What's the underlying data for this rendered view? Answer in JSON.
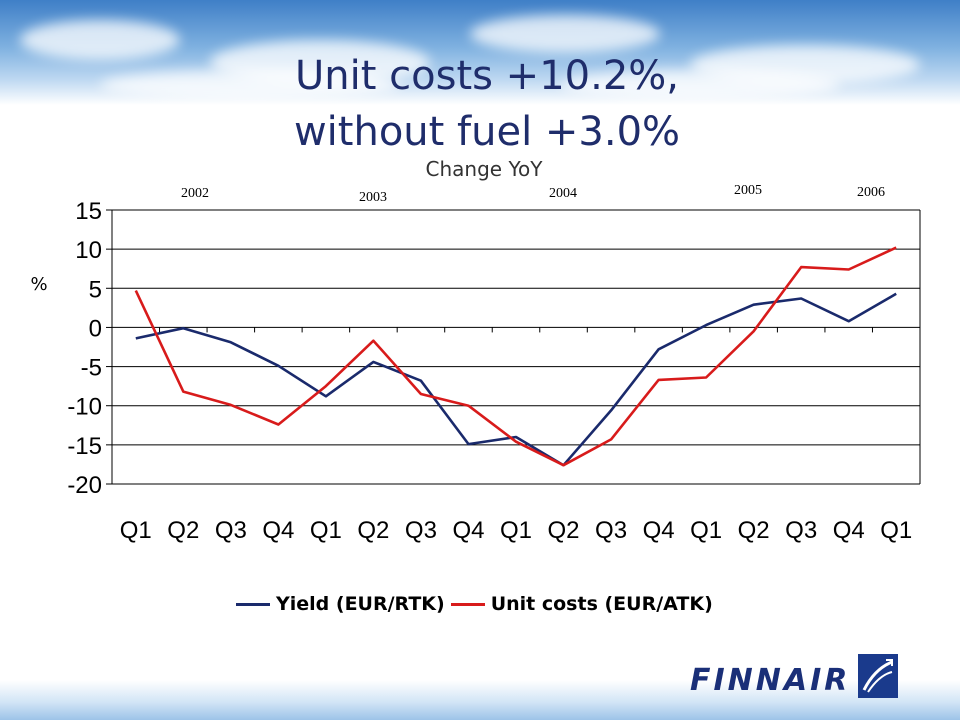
{
  "title_line1": "Unit costs +10.2%,",
  "title_line2": "without fuel +3.0%",
  "subtitle": "Change YoY",
  "logo_text": "FINNAIR",
  "colors": {
    "yield": "#1a2a6c",
    "unit_costs": "#d81b1b",
    "title": "#1f2d6b"
  },
  "chart_data": {
    "type": "line",
    "ylabel": "%",
    "ylim": [
      -20,
      15
    ],
    "yticks": [
      15,
      10,
      5,
      0,
      -5,
      -10,
      -15,
      -20
    ],
    "grid": true,
    "legend_position": "bottom",
    "categories": [
      "Q1",
      "Q2",
      "Q3",
      "Q4",
      "Q1",
      "Q2",
      "Q3",
      "Q4",
      "Q1",
      "Q2",
      "Q3",
      "Q4",
      "Q1",
      "Q2",
      "Q3",
      "Q4",
      "Q1"
    ],
    "year_labels": [
      "2002",
      "2003",
      "2004",
      "2005",
      "2006"
    ],
    "series": [
      {
        "name": "Yield (EUR/RTK)",
        "color": "#1a2a6c",
        "values": [
          -1.4,
          -0.1,
          -1.9,
          -4.9,
          -8.8,
          -4.4,
          -6.8,
          -14.9,
          -14.0,
          -17.6,
          -10.6,
          -2.8,
          0.3,
          2.9,
          3.7,
          0.8,
          4.3
        ]
      },
      {
        "name": "Unit costs (EUR/ATK)",
        "color": "#d81b1b",
        "values": [
          4.7,
          -8.2,
          -9.9,
          -12.4,
          -7.5,
          -1.7,
          -8.5,
          -10.0,
          -14.6,
          -17.6,
          -14.3,
          -6.7,
          -6.4,
          -0.5,
          7.7,
          7.4,
          10.2
        ]
      }
    ]
  }
}
